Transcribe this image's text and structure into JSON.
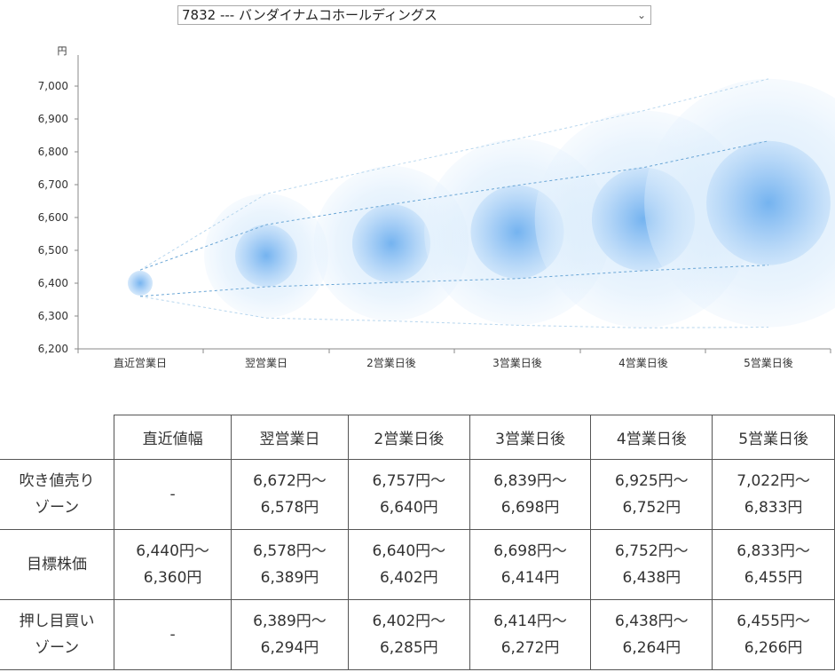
{
  "select": {
    "value": "7832 --- バンダイナムコホールディングス"
  },
  "chart_data": {
    "type": "bubble-range",
    "unit": "円",
    "ylim": [
      6200,
      7000
    ],
    "yticks": [
      "6,200",
      "6,300",
      "6,400",
      "6,500",
      "6,600",
      "6,700",
      "6,800",
      "6,900",
      "7,000"
    ],
    "ytick_values": [
      6200,
      6300,
      6400,
      6500,
      6600,
      6700,
      6800,
      6900,
      7000
    ],
    "categories": [
      "直近営業日",
      "翌営業日",
      "2営業日後",
      "3営業日後",
      "4営業日後",
      "5営業日後"
    ],
    "center": [
      6400,
      6484,
      6521,
      6556,
      6595,
      6644
    ],
    "target_high": [
      6440,
      6578,
      6640,
      6698,
      6752,
      6833
    ],
    "target_low": [
      6360,
      6389,
      6402,
      6414,
      6438,
      6455
    ],
    "outer_high": [
      6440,
      6672,
      6757,
      6839,
      6925,
      7022
    ],
    "outer_low": [
      6360,
      6294,
      6285,
      6272,
      6264,
      6266
    ],
    "colors": {
      "bubble": "#9cc9f5",
      "bubble_core": "#6fb0ef",
      "line": "#6aa6d6",
      "outer_line": "#b7d6ee",
      "axis": "#888888"
    }
  },
  "table": {
    "headers": [
      "",
      "直近値幅",
      "翌営業日",
      "2営業日後",
      "3営業日後",
      "4営業日後",
      "5営業日後"
    ],
    "rows": [
      {
        "label": [
          "吹き値売り",
          "ゾーン"
        ],
        "cells": [
          [
            "-"
          ],
          [
            "6,672円～",
            "6,578円"
          ],
          [
            "6,757円～",
            "6,640円"
          ],
          [
            "6,839円～",
            "6,698円"
          ],
          [
            "6,925円～",
            "6,752円"
          ],
          [
            "7,022円～",
            "6,833円"
          ]
        ]
      },
      {
        "label": [
          "目標株価"
        ],
        "cells": [
          [
            "6,440円～",
            "6,360円"
          ],
          [
            "6,578円～",
            "6,389円"
          ],
          [
            "6,640円～",
            "6,402円"
          ],
          [
            "6,698円～",
            "6,414円"
          ],
          [
            "6,752円～",
            "6,438円"
          ],
          [
            "6,833円～",
            "6,455円"
          ]
        ]
      },
      {
        "label": [
          "押し目買い",
          "ゾーン"
        ],
        "cells": [
          [
            "-"
          ],
          [
            "6,389円～",
            "6,294円"
          ],
          [
            "6,402円～",
            "6,285円"
          ],
          [
            "6,414円～",
            "6,272円"
          ],
          [
            "6,438円～",
            "6,264円"
          ],
          [
            "6,455円～",
            "6,266円"
          ]
        ]
      }
    ]
  }
}
